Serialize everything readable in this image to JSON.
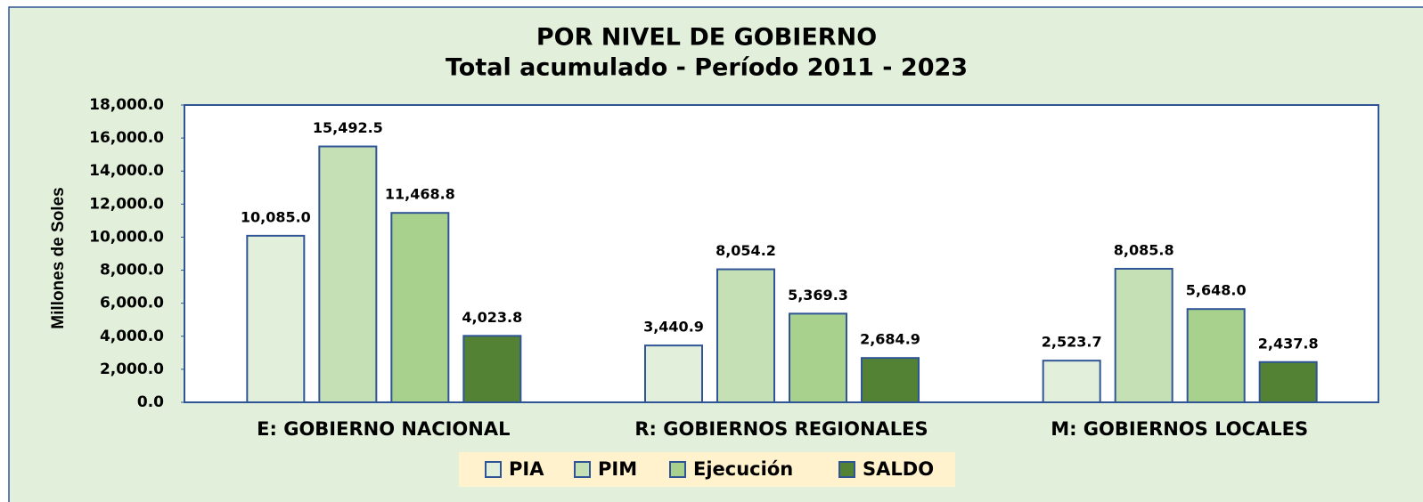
{
  "chart_data": {
    "type": "bar",
    "title": "POR NIVEL DE GOBIERNO",
    "subtitle": "Total acumulado - Período 2011 - 2023",
    "y_label": "Millones de Soles",
    "categories": [
      "E: GOBIERNO NACIONAL",
      "R: GOBIERNOS REGIONALES",
      "M: GOBIERNOS LOCALES"
    ],
    "series": [
      {
        "name": "PIA",
        "color": "#e2efda",
        "values": [
          10085.0,
          3440.9,
          2523.7
        ],
        "value_labels": [
          "10,085.0",
          "3,440.9",
          "2,523.7"
        ]
      },
      {
        "name": "PIM",
        "color": "#c5e0b4",
        "values": [
          15492.5,
          8054.2,
          8085.8
        ],
        "value_labels": [
          "15,492.5",
          "8,054.2",
          "8,085.8"
        ]
      },
      {
        "name": "Ejecución",
        "color": "#a9d18e",
        "values": [
          11468.8,
          5369.3,
          5648.0
        ],
        "value_labels": [
          "11,468.8",
          "5,369.3",
          "5,648.0"
        ]
      },
      {
        "name": "SALDO",
        "color": "#548235",
        "values": [
          4023.8,
          2684.9,
          2437.8
        ],
        "value_labels": [
          "4,023.8",
          "2,684.9",
          "2,437.8"
        ]
      }
    ],
    "ylim": [
      0,
      18000
    ],
    "yticks": [
      {
        "value": 0,
        "label": "0.0"
      },
      {
        "value": 2000,
        "label": "2,000.0"
      },
      {
        "value": 4000,
        "label": "4,000.0"
      },
      {
        "value": 6000,
        "label": "6,000.0"
      },
      {
        "value": 8000,
        "label": "8,000.0"
      },
      {
        "value": 10000,
        "label": "10,000.0"
      },
      {
        "value": 12000,
        "label": "12,000.0"
      },
      {
        "value": 14000,
        "label": "14,000.0"
      },
      {
        "value": 16000,
        "label": "16,000.0"
      },
      {
        "value": 18000,
        "label": "18,000.0"
      }
    ],
    "legend_position": "bottom"
  }
}
